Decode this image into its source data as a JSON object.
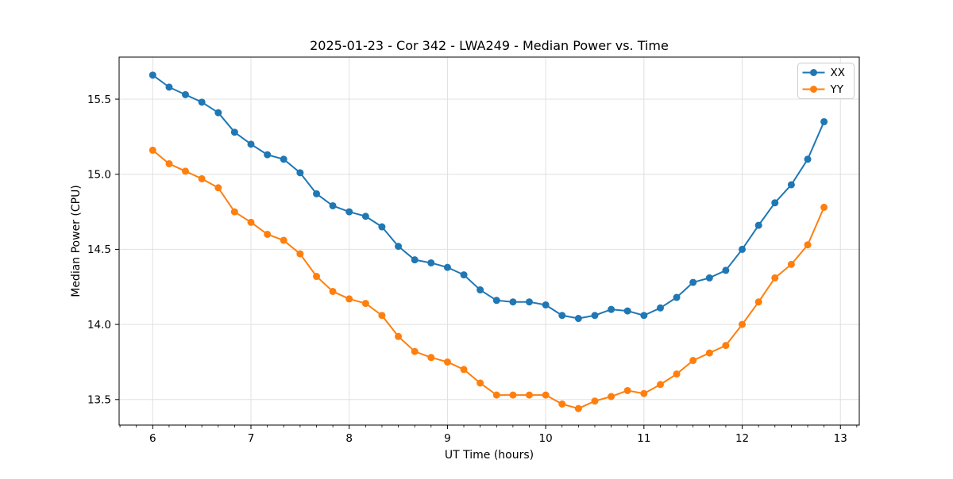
{
  "chart_data": {
    "type": "line",
    "title": "2025-01-23 - Cor 342 - LWA249 - Median Power vs. Time",
    "xlabel": "UT Time (hours)",
    "ylabel": "Median Power (CPU)",
    "xlim": [
      5.658,
      13.192
    ],
    "ylim": [
      13.33,
      15.78
    ],
    "xticks": [
      6,
      7,
      8,
      9,
      10,
      11,
      12,
      13
    ],
    "yticks": [
      13.5,
      14.0,
      14.5,
      15.0,
      15.5
    ],
    "x_minor_step": 0.16666667,
    "grid": true,
    "grid_color": "#e0e0e0",
    "legend_position": "upper right",
    "x": [
      6.0,
      6.167,
      6.333,
      6.5,
      6.667,
      6.833,
      7.0,
      7.167,
      7.333,
      7.5,
      7.667,
      7.833,
      8.0,
      8.167,
      8.333,
      8.5,
      8.667,
      8.833,
      9.0,
      9.167,
      9.333,
      9.5,
      9.667,
      9.833,
      10.0,
      10.167,
      10.333,
      10.5,
      10.667,
      10.833,
      11.0,
      11.167,
      11.333,
      11.5,
      11.667,
      11.833,
      12.0,
      12.167,
      12.333,
      12.5,
      12.667,
      12.833
    ],
    "series": [
      {
        "name": "XX",
        "color": "#1f77b4",
        "values": [
          15.66,
          15.58,
          15.53,
          15.48,
          15.41,
          15.28,
          15.2,
          15.13,
          15.1,
          15.01,
          14.87,
          14.79,
          14.75,
          14.72,
          14.65,
          14.52,
          14.43,
          14.41,
          14.38,
          14.33,
          14.23,
          14.16,
          14.15,
          14.15,
          14.13,
          14.06,
          14.04,
          14.06,
          14.1,
          14.09,
          14.06,
          14.11,
          14.18,
          14.28,
          14.31,
          14.36,
          14.5,
          14.66,
          14.81,
          14.93,
          15.1,
          15.35
        ]
      },
      {
        "name": "YY",
        "color": "#ff7f0e",
        "values": [
          15.16,
          15.07,
          15.02,
          14.97,
          14.91,
          14.75,
          14.68,
          14.6,
          14.56,
          14.47,
          14.32,
          14.22,
          14.17,
          14.14,
          14.06,
          13.92,
          13.82,
          13.78,
          13.75,
          13.7,
          13.61,
          13.53,
          13.53,
          13.53,
          13.53,
          13.47,
          13.44,
          13.49,
          13.52,
          13.56,
          13.54,
          13.6,
          13.67,
          13.76,
          13.81,
          13.86,
          14.0,
          14.15,
          14.31,
          14.4,
          14.53,
          14.78
        ]
      }
    ]
  },
  "colors": {
    "background": "#ffffff",
    "spine": "#000000",
    "grid": "#e0e0e0",
    "text": "#000000",
    "legend_border": "#cccccc"
  }
}
